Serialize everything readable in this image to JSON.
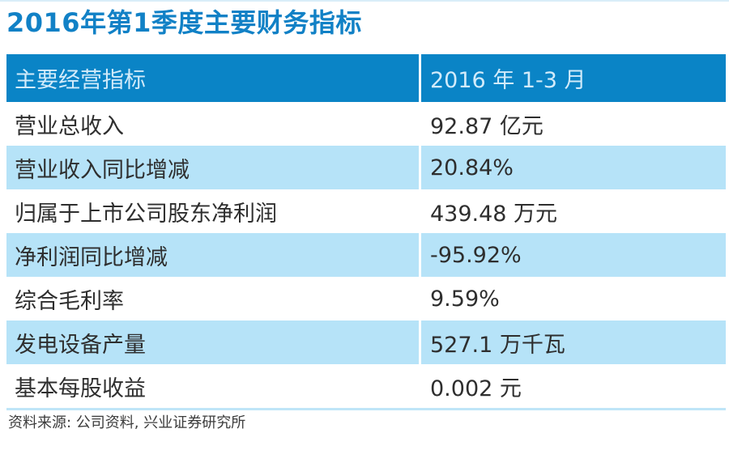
{
  "title": "2016年第1季度主要财务指标",
  "source_note": "资料来源: 公司资料, 兴业证券研究所",
  "table": {
    "header": {
      "label": "主要经营指标",
      "value": "2016 年 1-3 月"
    },
    "rows": [
      {
        "label": "营业总收入",
        "value": "92.87 亿元"
      },
      {
        "label": "营业收入同比增减",
        "value": "20.84%"
      },
      {
        "label": "归属于上市公司股东净利润",
        "value": "439.48 万元"
      },
      {
        "label": "净利润同比增减",
        "value": "-95.92%"
      },
      {
        "label": "综合毛利率",
        "value": "9.59%"
      },
      {
        "label": "发电设备产量",
        "value": "527.1 万千瓦"
      },
      {
        "label": "基本每股收益",
        "value": "0.002 元"
      }
    ]
  },
  "colors": {
    "title_blue": "#1181c6",
    "header_bg": "#0a84c6",
    "header_text": "#d2ebfa",
    "alt_row_bg": "#b6e3f8",
    "top_rule": "#d9edf9",
    "bottom_rule": "#bfe5f8",
    "body_text": "#2e2e2e"
  },
  "chart_data": {
    "type": "table",
    "title": "2016年第1季度主要财务指标",
    "columns": [
      "主要经营指标",
      "2016 年 1-3 月"
    ],
    "rows": [
      [
        "营业总收入",
        "92.87 亿元"
      ],
      [
        "营业收入同比增减",
        "20.84%"
      ],
      [
        "归属于上市公司股东净利润",
        "439.48 万元"
      ],
      [
        "净利润同比增减",
        "-95.92%"
      ],
      [
        "综合毛利率",
        "9.59%"
      ],
      [
        "发电设备产量",
        "527.1 万千瓦"
      ],
      [
        "基本每股收益",
        "0.002 元"
      ]
    ],
    "source": "资料来源: 公司资料, 兴业证券研究所"
  }
}
